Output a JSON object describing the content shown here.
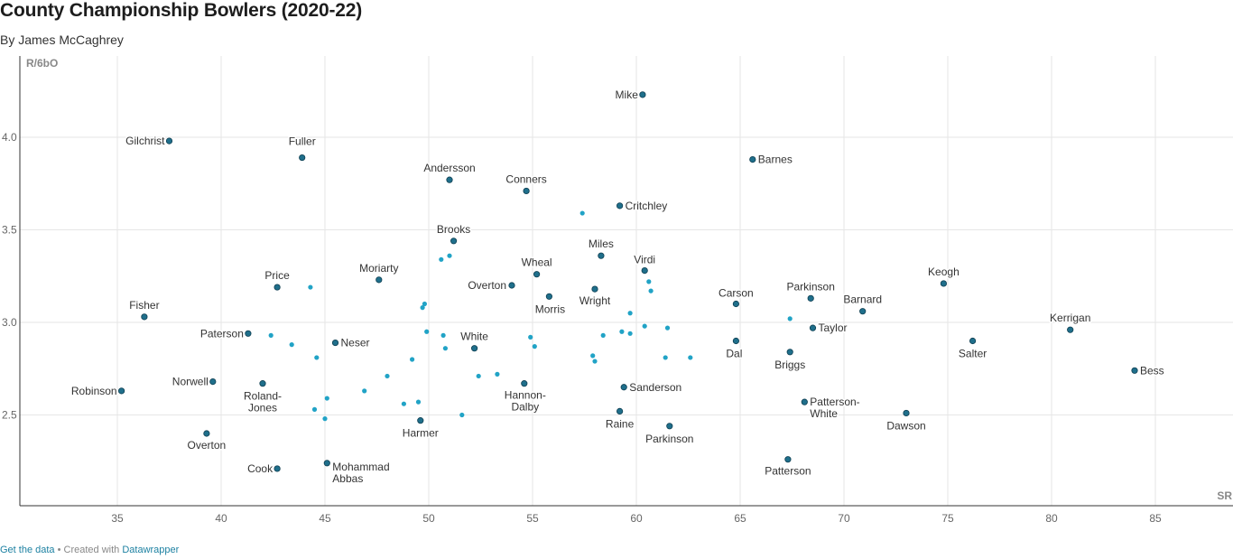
{
  "header": {
    "title": "County Championship Bowlers (2020-22)",
    "byline": "By James McCaghrey"
  },
  "footer": {
    "data_link": "Get the data",
    "separator": " • Created with ",
    "tool_link": "Datawrapper"
  },
  "colors": {
    "labeled_point": "#1f6f8b",
    "unlabeled_point": "#21a3c6",
    "grid": "#e6e6e6",
    "axis": "#333333"
  },
  "chart_data": {
    "type": "scatter",
    "title": "County Championship Bowlers (2020-22)",
    "xlabel": "SR",
    "ylabel": "R/6bO",
    "xlim": [
      30.5,
      88.5
    ],
    "ylim": [
      2.05,
      4.35
    ],
    "xticks": [
      35,
      40,
      45,
      50,
      55,
      60,
      65,
      70,
      75,
      80,
      85
    ],
    "yticks": [
      2.5,
      3.0,
      3.5,
      4.0
    ],
    "ytick_labels": [
      "2.5",
      "3.0",
      "3.5",
      "4.0"
    ],
    "grid": true,
    "labeled_points": [
      {
        "label": "Mike",
        "x": 60.3,
        "y": 4.23
      },
      {
        "label": "Gilchrist",
        "x": 37.5,
        "y": 3.98
      },
      {
        "label": "Fuller",
        "x": 43.9,
        "y": 3.89
      },
      {
        "label": "Barnes",
        "x": 65.6,
        "y": 3.88
      },
      {
        "label": "Andersson",
        "x": 51.0,
        "y": 3.77
      },
      {
        "label": "Conners",
        "x": 54.7,
        "y": 3.71
      },
      {
        "label": "Critchley",
        "x": 59.2,
        "y": 3.63
      },
      {
        "label": "Brooks",
        "x": 51.2,
        "y": 3.44
      },
      {
        "label": "Miles",
        "x": 58.3,
        "y": 3.36
      },
      {
        "label": "Virdi",
        "x": 60.4,
        "y": 3.28
      },
      {
        "label": "Wheal",
        "x": 55.2,
        "y": 3.26
      },
      {
        "label": "Moriarty",
        "x": 47.6,
        "y": 3.23
      },
      {
        "label": "Price",
        "x": 42.7,
        "y": 3.19
      },
      {
        "label": "Overton",
        "x": 54.0,
        "y": 3.2
      },
      {
        "label": "Wright",
        "x": 58.0,
        "y": 3.18
      },
      {
        "label": "Morris",
        "x": 55.8,
        "y": 3.14
      },
      {
        "label": "Carson",
        "x": 64.8,
        "y": 3.1
      },
      {
        "label": "Parkinson",
        "x": 68.4,
        "y": 3.13
      },
      {
        "label": "Keogh",
        "x": 74.8,
        "y": 3.21
      },
      {
        "label": "Barnard",
        "x": 70.9,
        "y": 3.06
      },
      {
        "label": "Fisher",
        "x": 36.3,
        "y": 3.03
      },
      {
        "label": "Taylor",
        "x": 68.5,
        "y": 2.97
      },
      {
        "label": "Kerrigan",
        "x": 80.9,
        "y": 2.96
      },
      {
        "label": "Paterson",
        "x": 41.3,
        "y": 2.94
      },
      {
        "label": "Neser",
        "x": 45.5,
        "y": 2.89
      },
      {
        "label": "White",
        "x": 52.2,
        "y": 2.86
      },
      {
        "label": "Dal",
        "x": 64.8,
        "y": 2.9
      },
      {
        "label": "Salter",
        "x": 76.2,
        "y": 2.9
      },
      {
        "label": "Briggs",
        "x": 67.4,
        "y": 2.84
      },
      {
        "label": "Bess",
        "x": 84.0,
        "y": 2.74
      },
      {
        "label": "Norwell",
        "x": 39.6,
        "y": 2.68
      },
      {
        "label": "Roland-Jones",
        "x": 42.0,
        "y": 2.67
      },
      {
        "label": "Hannon-Dalby",
        "x": 54.6,
        "y": 2.67
      },
      {
        "label": "Sanderson",
        "x": 59.4,
        "y": 2.65
      },
      {
        "label": "Robinson",
        "x": 35.2,
        "y": 2.63
      },
      {
        "label": "Patterson-White",
        "x": 68.1,
        "y": 2.57
      },
      {
        "label": "Raine",
        "x": 59.2,
        "y": 2.52
      },
      {
        "label": "Dawson",
        "x": 73.0,
        "y": 2.51
      },
      {
        "label": "Harmer",
        "x": 49.6,
        "y": 2.47
      },
      {
        "label": "Parkinson",
        "x": 61.6,
        "y": 2.44
      },
      {
        "label": "Overton",
        "x": 39.3,
        "y": 2.4
      },
      {
        "label": "Patterson",
        "x": 67.3,
        "y": 2.26
      },
      {
        "label": "Mohammad Abbas",
        "x": 45.1,
        "y": 2.24
      },
      {
        "label": "Cook",
        "x": 42.7,
        "y": 2.21
      }
    ],
    "unlabeled_points": [
      {
        "x": 57.4,
        "y": 3.59
      },
      {
        "x": 51.0,
        "y": 3.36
      },
      {
        "x": 50.6,
        "y": 3.34
      },
      {
        "x": 44.3,
        "y": 3.19
      },
      {
        "x": 60.6,
        "y": 3.22
      },
      {
        "x": 60.7,
        "y": 3.17
      },
      {
        "x": 49.8,
        "y": 3.1
      },
      {
        "x": 49.7,
        "y": 3.08
      },
      {
        "x": 59.7,
        "y": 3.05
      },
      {
        "x": 67.4,
        "y": 3.02
      },
      {
        "x": 60.4,
        "y": 2.98
      },
      {
        "x": 61.5,
        "y": 2.97
      },
      {
        "x": 49.9,
        "y": 2.95
      },
      {
        "x": 59.3,
        "y": 2.95
      },
      {
        "x": 59.7,
        "y": 2.94
      },
      {
        "x": 42.4,
        "y": 2.93
      },
      {
        "x": 50.7,
        "y": 2.93
      },
      {
        "x": 54.9,
        "y": 2.92
      },
      {
        "x": 58.4,
        "y": 2.93
      },
      {
        "x": 43.4,
        "y": 2.88
      },
      {
        "x": 50.8,
        "y": 2.86
      },
      {
        "x": 55.1,
        "y": 2.87
      },
      {
        "x": 44.6,
        "y": 2.81
      },
      {
        "x": 49.2,
        "y": 2.8
      },
      {
        "x": 57.9,
        "y": 2.82
      },
      {
        "x": 58.0,
        "y": 2.79
      },
      {
        "x": 61.4,
        "y": 2.81
      },
      {
        "x": 62.6,
        "y": 2.81
      },
      {
        "x": 48.0,
        "y": 2.71
      },
      {
        "x": 52.4,
        "y": 2.71
      },
      {
        "x": 53.3,
        "y": 2.72
      },
      {
        "x": 46.9,
        "y": 2.63
      },
      {
        "x": 45.1,
        "y": 2.59
      },
      {
        "x": 48.8,
        "y": 2.56
      },
      {
        "x": 49.5,
        "y": 2.57
      },
      {
        "x": 44.5,
        "y": 2.53
      },
      {
        "x": 51.6,
        "y": 2.5
      },
      {
        "x": 45.0,
        "y": 2.48
      }
    ]
  }
}
